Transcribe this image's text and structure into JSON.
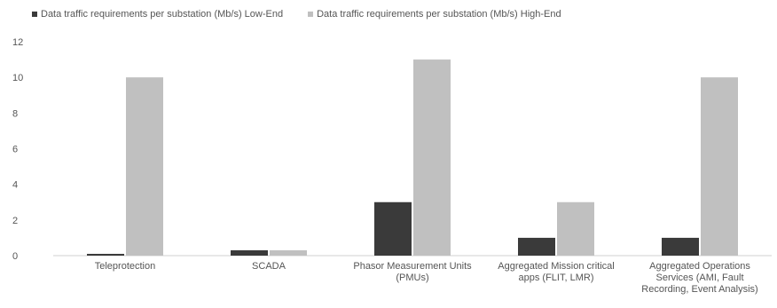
{
  "chart_data": {
    "type": "bar",
    "title": "",
    "xlabel": "",
    "ylabel": "",
    "ylim": [
      0,
      12
    ],
    "yticks": [
      0,
      2,
      4,
      6,
      8,
      10,
      12
    ],
    "grid": false,
    "legend_position": "top-left",
    "categories": [
      "Teleprotection",
      "SCADA",
      "Phasor Measurement Units (PMUs)",
      "Aggregated Mission critical apps (FLIT, LMR)",
      "Aggregated Operations Services (AMI, Fault Recording, Event Analysis)"
    ],
    "category_lines": [
      [
        "Teleprotection"
      ],
      [
        "SCADA"
      ],
      [
        "Phasor Measurement Units",
        "(PMUs)"
      ],
      [
        "Aggregated Mission critical",
        "apps (FLIT, LMR)"
      ],
      [
        "Aggregated Operations",
        "Services (AMI, Fault",
        "Recording, Event Analysis)"
      ]
    ],
    "series": [
      {
        "name": "Data traffic requirements per substation (Mb/s) Low-End",
        "color": "#3a3a3a",
        "values": [
          0.1,
          0.3,
          3,
          1,
          1
        ]
      },
      {
        "name": "Data traffic requirements per substation (Mb/s) High-End",
        "color": "#c0c0c0",
        "values": [
          10,
          0.3,
          11,
          3,
          10
        ]
      }
    ]
  }
}
